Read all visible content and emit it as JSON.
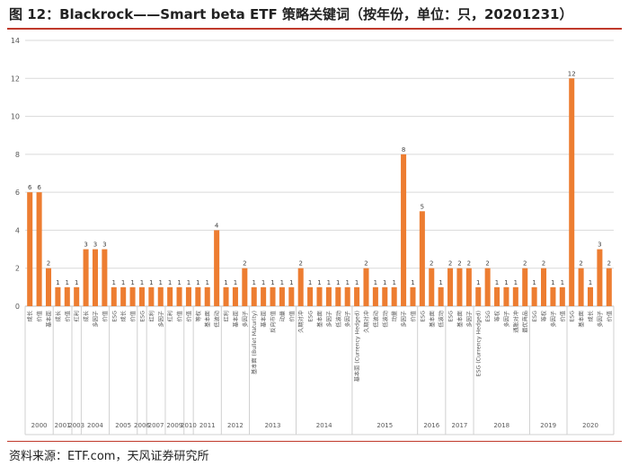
{
  "title": "图 12：Blackrock——Smart beta ETF 策略关键词（按年份，单位：只，20201231）",
  "source": "资料来源：ETF.com，天风证券研究所",
  "colors": {
    "bar": "#ED7D31",
    "grid": "#D9D9D9",
    "axis_text": "#595959",
    "rule": "#C0392B"
  },
  "chart_data": {
    "type": "bar",
    "title": "",
    "xlabel": "",
    "ylabel": "",
    "ylim": [
      0,
      14
    ],
    "yticks": [
      0,
      2,
      4,
      6,
      8,
      10,
      12,
      14
    ],
    "grid": true,
    "legend": "none",
    "bars": [
      {
        "year": "2000",
        "label": "成长",
        "value": 6
      },
      {
        "year": "2000",
        "label": "价值",
        "value": 6
      },
      {
        "year": "2000",
        "label": "基本面",
        "value": 2
      },
      {
        "year": "2001",
        "label": "成长",
        "value": 1
      },
      {
        "year": "2001",
        "label": "价值",
        "value": 1
      },
      {
        "year": "2003",
        "label": "红利",
        "value": 1
      },
      {
        "year": "2004",
        "label": "成长",
        "value": 3
      },
      {
        "year": "2004",
        "label": "多因子",
        "value": 3
      },
      {
        "year": "2004",
        "label": "价值",
        "value": 3
      },
      {
        "year": "2005",
        "label": "ESG",
        "value": 1
      },
      {
        "year": "2005",
        "label": "成长",
        "value": 1
      },
      {
        "year": "2005",
        "label": "价值",
        "value": 1
      },
      {
        "year": "2006",
        "label": "ESG",
        "value": 1
      },
      {
        "year": "2007",
        "label": "红利",
        "value": 1
      },
      {
        "year": "2007",
        "label": "多因子",
        "value": 1
      },
      {
        "year": "2009",
        "label": "红利",
        "value": 1
      },
      {
        "year": "2009",
        "label": "价值",
        "value": 1
      },
      {
        "year": "2010",
        "label": "价值",
        "value": 1
      },
      {
        "year": "2011",
        "label": "等权",
        "value": 1
      },
      {
        "year": "2011",
        "label": "基本面",
        "value": 1
      },
      {
        "year": "2011",
        "label": "低波动",
        "value": 4
      },
      {
        "year": "2012",
        "label": "红利",
        "value": 1
      },
      {
        "year": "2012",
        "label": "基本面",
        "value": 1
      },
      {
        "year": "2012",
        "label": "多因子",
        "value": 2
      },
      {
        "year": "2013",
        "label": "基本面 (Bullet Maturity)",
        "value": 1
      },
      {
        "year": "2013",
        "label": "基本面",
        "value": 1
      },
      {
        "year": "2013",
        "label": "反向市值",
        "value": 1
      },
      {
        "year": "2013",
        "label": "动量",
        "value": 1
      },
      {
        "year": "2013",
        "label": "价值",
        "value": 1
      },
      {
        "year": "2014",
        "label": "久期对冲",
        "value": 2
      },
      {
        "year": "2014",
        "label": "ESG",
        "value": 1
      },
      {
        "year": "2014",
        "label": "基本面",
        "value": 1
      },
      {
        "year": "2014",
        "label": "多因子",
        "value": 1
      },
      {
        "year": "2014",
        "label": "低波动",
        "value": 1
      },
      {
        "year": "2014",
        "label": "多因子",
        "value": 1
      },
      {
        "year": "2015",
        "label": "基本面 (Currency Hedged)",
        "value": 1
      },
      {
        "year": "2015",
        "label": "久期对冲",
        "value": 2
      },
      {
        "year": "2015",
        "label": "低波动",
        "value": 1
      },
      {
        "year": "2015",
        "label": "低波动",
        "value": 1
      },
      {
        "year": "2015",
        "label": "动量",
        "value": 1
      },
      {
        "year": "2015",
        "label": "多因子",
        "value": 8
      },
      {
        "year": "2015",
        "label": "价值",
        "value": 1
      },
      {
        "year": "2016",
        "label": "ESG",
        "value": 5
      },
      {
        "year": "2016",
        "label": "基本面",
        "value": 2
      },
      {
        "year": "2016",
        "label": "低波动",
        "value": 1
      },
      {
        "year": "2017",
        "label": "ESG",
        "value": 2
      },
      {
        "year": "2017",
        "label": "基本面",
        "value": 2
      },
      {
        "year": "2017",
        "label": "多因子",
        "value": 2
      },
      {
        "year": "2018",
        "label": "ESG (Currency Hedged)",
        "value": 1
      },
      {
        "year": "2018",
        "label": "ESG",
        "value": 2
      },
      {
        "year": "2018",
        "label": "等权",
        "value": 1
      },
      {
        "year": "2018",
        "label": "多因子",
        "value": 1
      },
      {
        "year": "2018",
        "label": "通胀对冲",
        "value": 1
      },
      {
        "year": "2018",
        "label": "最优商品",
        "value": 2
      },
      {
        "year": "2019",
        "label": "ESG",
        "value": 1
      },
      {
        "year": "2019",
        "label": "等权",
        "value": 2
      },
      {
        "year": "2019",
        "label": "多因子",
        "value": 1
      },
      {
        "year": "2019",
        "label": "价值",
        "value": 1
      },
      {
        "year": "2020",
        "label": "ESG",
        "value": 12
      },
      {
        "year": "2020",
        "label": "基本面",
        "value": 2
      },
      {
        "year": "2020",
        "label": "成长",
        "value": 1
      },
      {
        "year": "2020",
        "label": "多因子",
        "value": 3
      },
      {
        "year": "2020",
        "label": "价值",
        "value": 2
      }
    ]
  }
}
